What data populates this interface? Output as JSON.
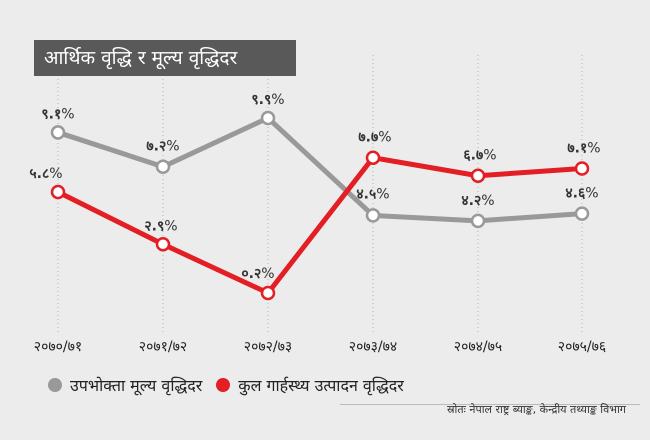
{
  "chart_data": {
    "type": "line",
    "title": "आर्थिक वृद्धि र मूल्य वृद्धिदर",
    "categories": [
      "२०७०/७१",
      "२०७१/७२",
      "२०७२/७३",
      "२०७३/७४",
      "२०७४/७५",
      "२०७५/७६"
    ],
    "series": [
      {
        "name": "उपभोक्ता मूल्य वृद्धिदर",
        "color": "#999999",
        "values": [
          9.1,
          7.2,
          9.9,
          4.5,
          4.2,
          4.6
        ],
        "labels": [
          "९.१",
          "७.२",
          "९.९",
          "४.५",
          "४.२",
          "४.६"
        ]
      },
      {
        "name": "कुल गार्हस्थ्य उत्पादन वृद्धिदर",
        "color": "#e31e24",
        "values": [
          5.8,
          2.9,
          0.2,
          7.7,
          6.7,
          7.1
        ],
        "labels": [
          "५.८",
          "२.९",
          "०.२",
          "७.७",
          "६.७",
          "७.१"
        ]
      }
    ],
    "unit_suffix": "%",
    "ylim": [
      0,
      10
    ],
    "grid": "vertical-dotted",
    "legend": "bottom"
  },
  "source": "स्रोतः नेपाल राष्ट्र ब्याङ्क, केन्द्रीय तथ्याङ्क विभाग"
}
